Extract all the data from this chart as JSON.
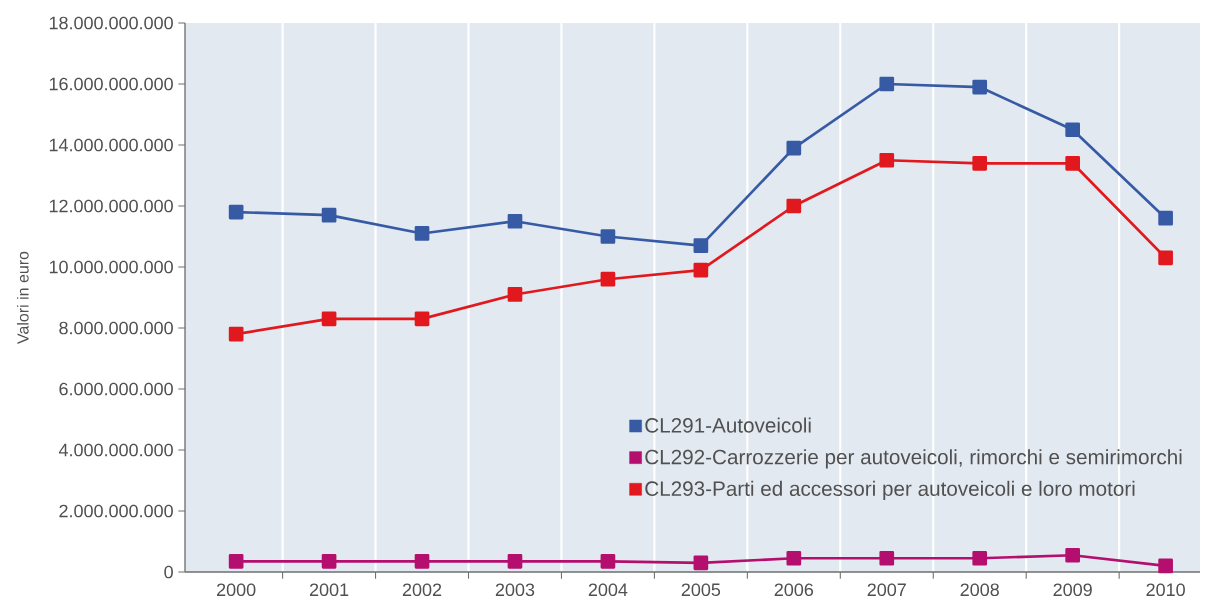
{
  "chart_data": {
    "type": "line",
    "ylabel": "Valori in euro",
    "categories": [
      "2000",
      "2001",
      "2002",
      "2003",
      "2004",
      "2005",
      "2006",
      "2007",
      "2008",
      "2009",
      "2010"
    ],
    "series": [
      {
        "name": "CL291-Autoveicoli",
        "color": "#375aa5",
        "values": [
          11800000000,
          11700000000,
          11100000000,
          11500000000,
          11000000000,
          10700000000,
          13900000000,
          16000000000,
          15900000000,
          14500000000,
          11600000000
        ]
      },
      {
        "name": "CL292-Carrozzerie per autoveicoli, rimorchi e semirimorchi",
        "color": "#b40f6e",
        "values": [
          350000000,
          350000000,
          350000000,
          350000000,
          350000000,
          300000000,
          450000000,
          450000000,
          450000000,
          550000000,
          200000000
        ]
      },
      {
        "name": "CL293-Parti ed accessori per autoveicoli e loro motori",
        "color": "#e1191e",
        "values": [
          7800000000,
          8300000000,
          8300000000,
          9100000000,
          9600000000,
          9900000000,
          12000000000,
          13500000000,
          13400000000,
          13400000000,
          10300000000
        ]
      }
    ],
    "ylim": [
      0,
      18000000000
    ],
    "yticks": [
      0,
      {
        "value": 2000000000,
        "label": "2.000.000.000"
      },
      {
        "value": 4000000000,
        "label": "4.000.000.000"
      },
      {
        "value": 6000000000,
        "label": "6.000.000.000"
      },
      {
        "value": 8000000000,
        "label": "8.000.000.000"
      },
      {
        "value": 10000000000,
        "label": "10.000.000.000"
      },
      {
        "value": 12000000000,
        "label": "12.000.000.000"
      },
      {
        "value": 14000000000,
        "label": "14.000.000.000"
      },
      {
        "value": 16000000000,
        "label": "16.000.000.000"
      },
      {
        "value": 18000000000,
        "label": "18.000.000.000"
      }
    ],
    "grid": "x",
    "legend": "bottom right",
    "marker": "square",
    "line_style": "solid"
  }
}
